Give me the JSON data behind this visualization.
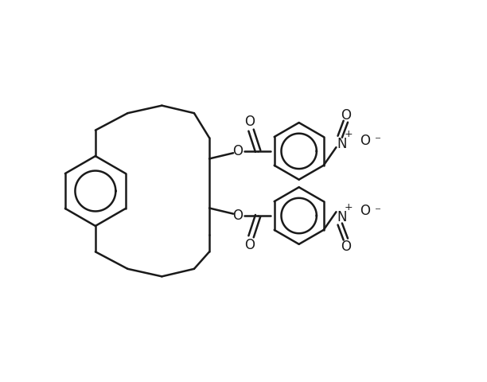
{
  "bg_color": "#ffffff",
  "line_color": "#1a1a1a",
  "line_width": 1.8,
  "figsize": [
    6.12,
    4.8
  ],
  "dpi": 100,
  "xlim": [
    -0.5,
    11.5
  ],
  "ylim": [
    -0.5,
    9.5
  ]
}
